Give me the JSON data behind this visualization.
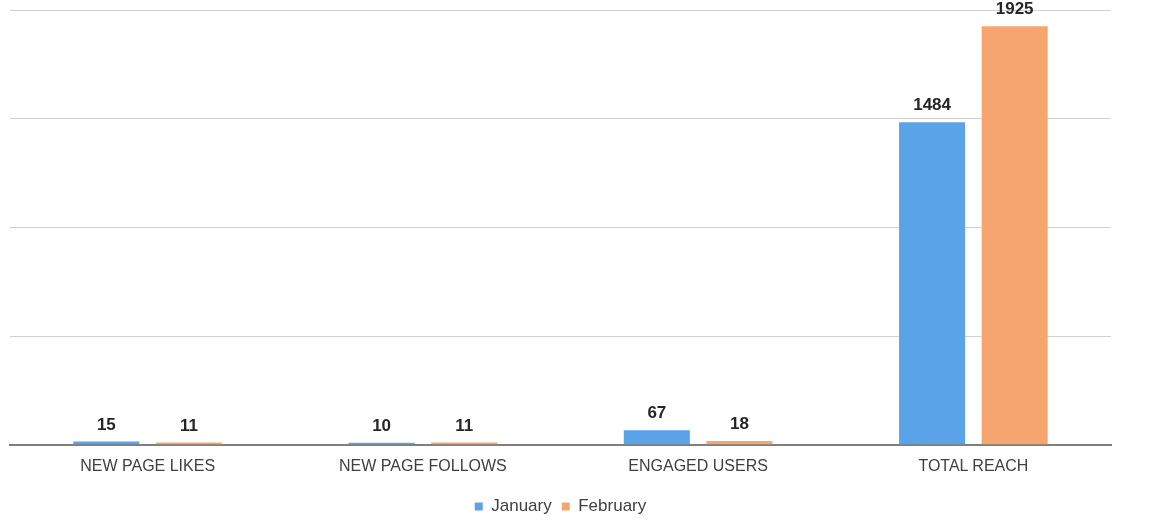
{
  "chart_data": {
    "type": "bar",
    "categories": [
      "NEW PAGE LIKES",
      "NEW PAGE FOLLOWS",
      "ENGAGED USERS",
      "TOTAL REACH"
    ],
    "series": [
      {
        "name": "January",
        "color": "#5ba3e8",
        "values": [
          15,
          10,
          67,
          1484
        ]
      },
      {
        "name": "February",
        "color": "#f7a56e",
        "values": [
          11,
          11,
          18,
          1925
        ]
      }
    ],
    "ylim": [
      0,
      2000
    ],
    "yticks": [
      {
        "value": 0,
        "label": null
      },
      {
        "value": 500,
        "label": null
      },
      {
        "value": 1000,
        "label": null
      },
      {
        "value": 1500,
        "label": null
      },
      {
        "value": 2000,
        "label": null
      }
    ],
    "tick_labels": "x",
    "grid": "y",
    "legend": "bottom",
    "data_labels": true
  }
}
